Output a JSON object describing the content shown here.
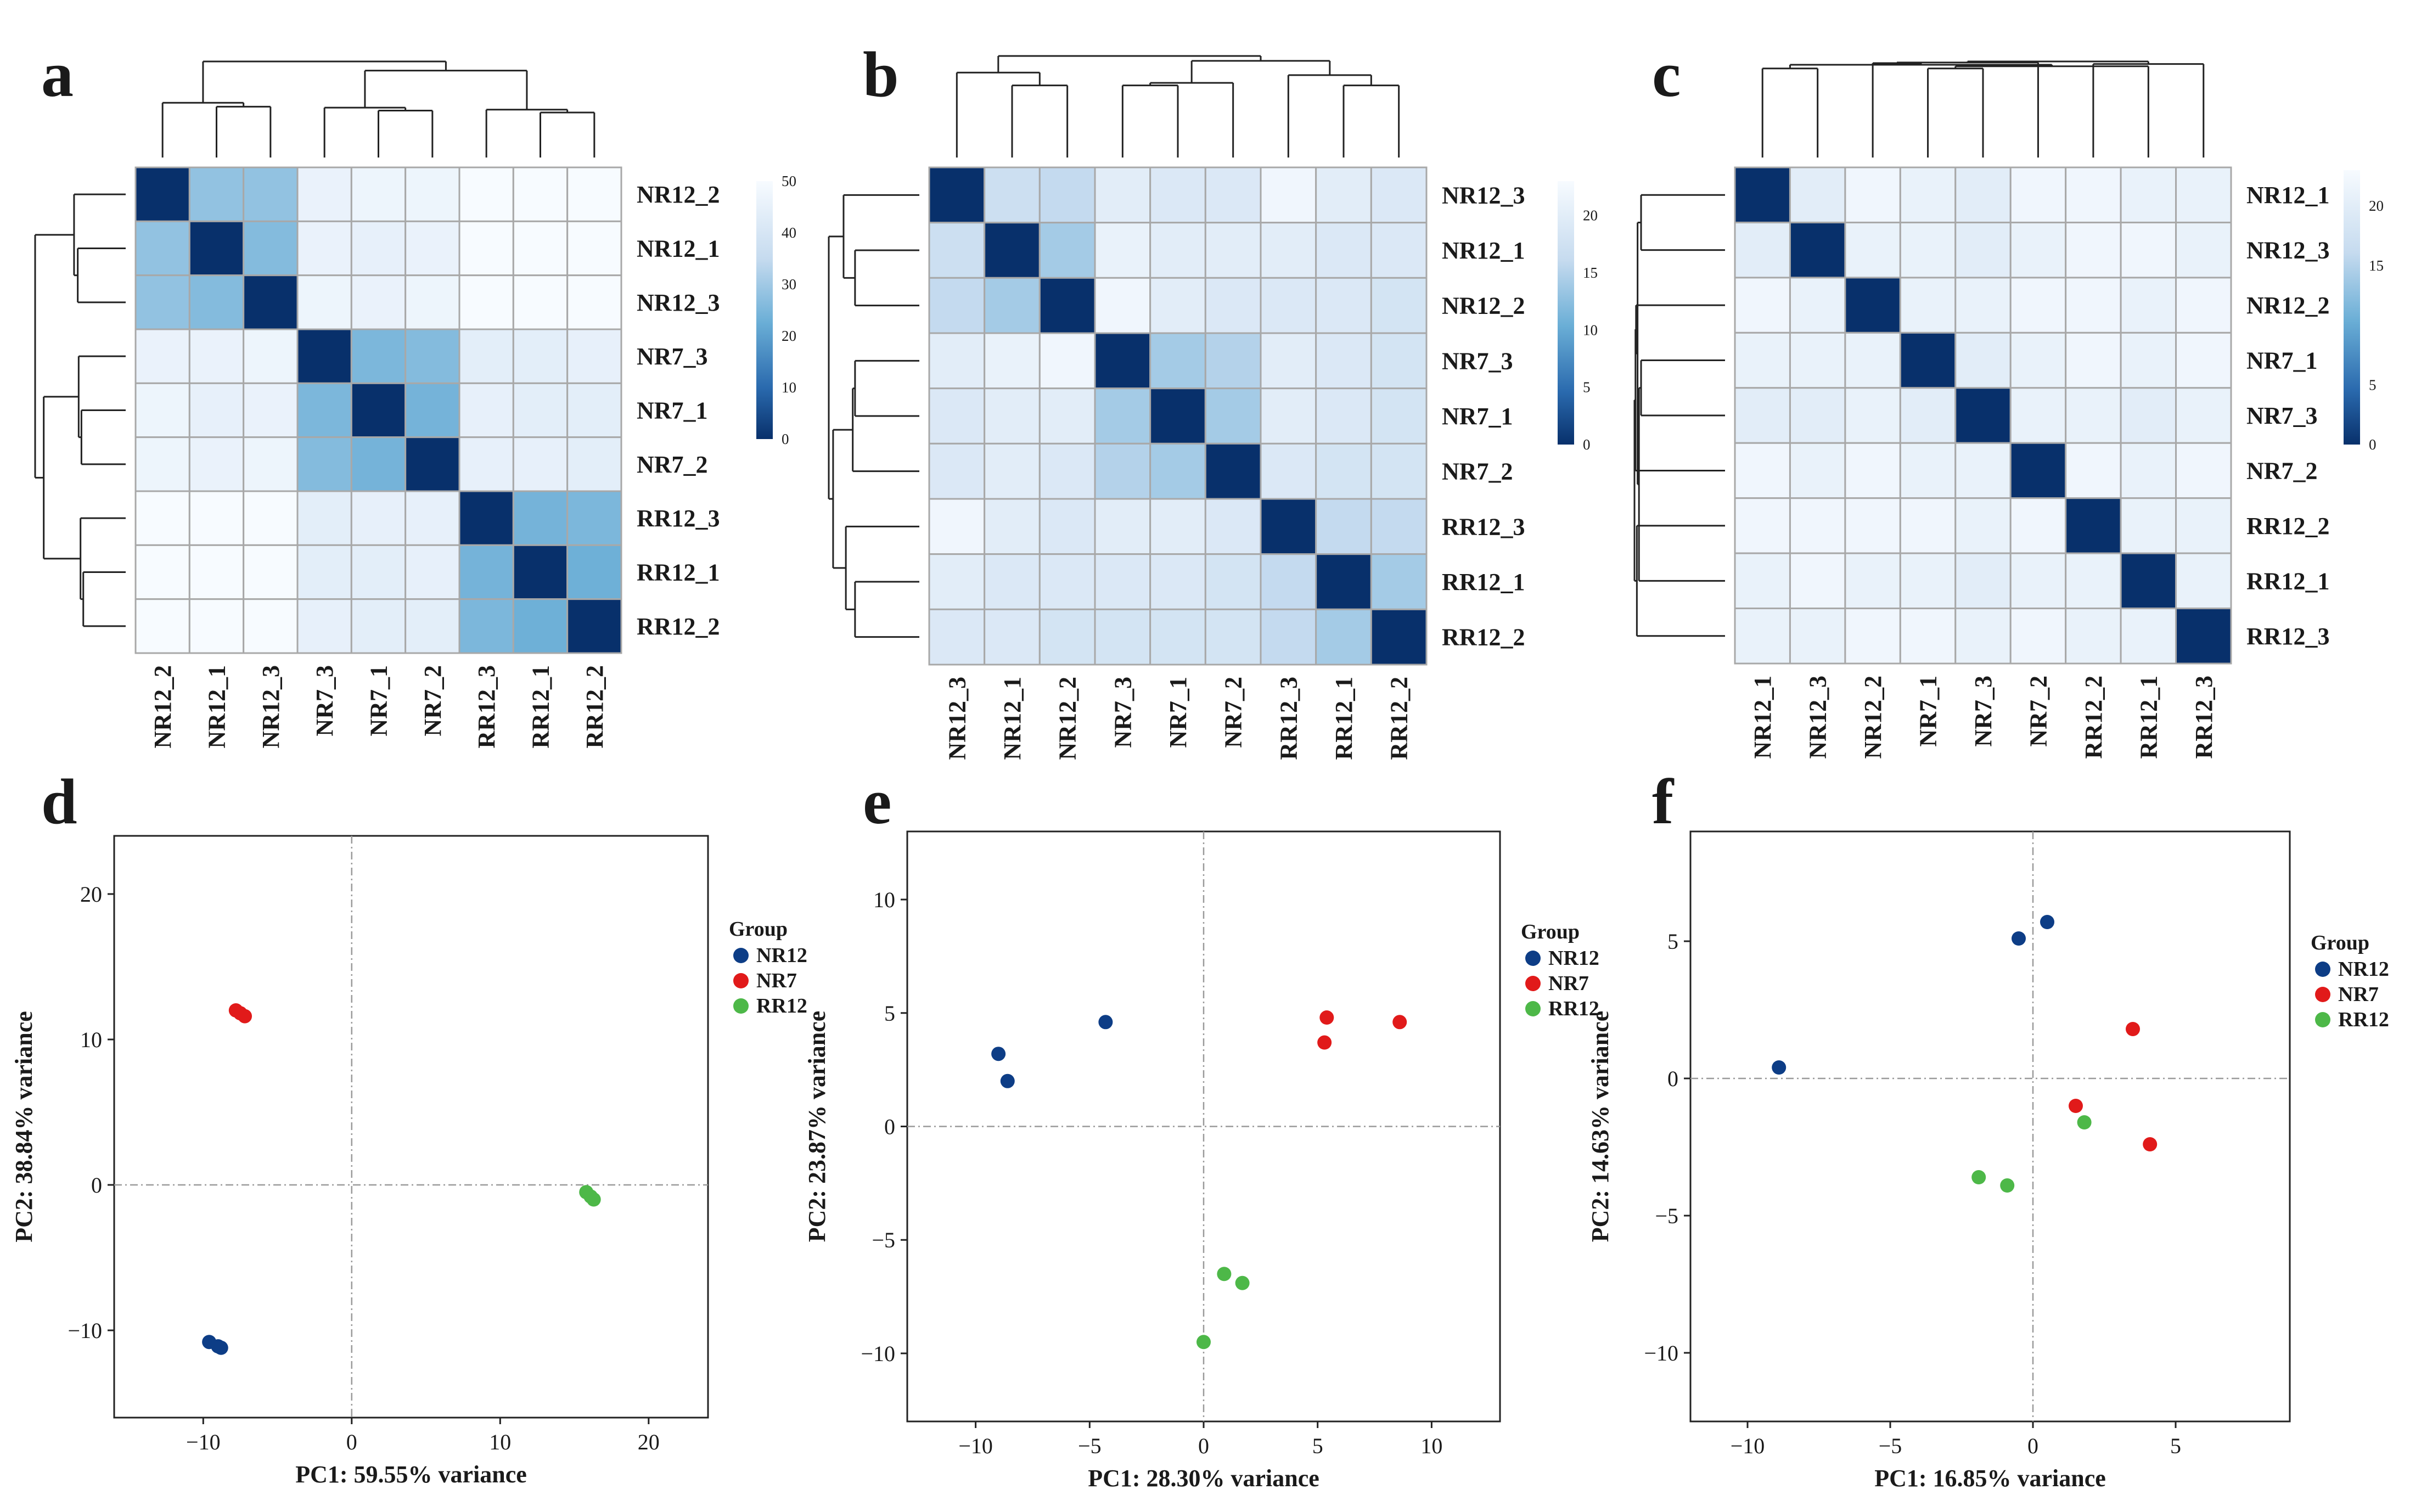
{
  "figure": {
    "panel_labels": [
      "a",
      "b",
      "c",
      "d",
      "e",
      "f"
    ]
  },
  "colors": {
    "NR12": "#0d3d86",
    "NR7": "#e11a1a",
    "RR12": "#4db848",
    "heat_low": "#08306b",
    "heat_mid": "#4a90c4",
    "heat_high": "#f7fbff",
    "grid": "#a8a8a8"
  },
  "chart_data": [
    {
      "panel": "a",
      "type": "heatmap",
      "row_labels": [
        "NR12_2",
        "NR12_1",
        "NR12_3",
        "NR7_3",
        "NR7_1",
        "NR7_2",
        "RR12_3",
        "RR12_1",
        "RR12_2"
      ],
      "col_labels": [
        "NR12_2",
        "NR12_1",
        "NR12_3",
        "NR7_3",
        "NR7_1",
        "NR7_2",
        "RR12_3",
        "RR12_1",
        "RR12_2"
      ],
      "matrix": [
        [
          0,
          28,
          28,
          46,
          47,
          47,
          52,
          53,
          53
        ],
        [
          28,
          0,
          26,
          46,
          45,
          46,
          51,
          52,
          52
        ],
        [
          28,
          26,
          0,
          47,
          46,
          47,
          52,
          51,
          51
        ],
        [
          46,
          46,
          47,
          0,
          25,
          26,
          44,
          44,
          45
        ],
        [
          47,
          45,
          46,
          25,
          0,
          24,
          45,
          44,
          44
        ],
        [
          47,
          46,
          47,
          26,
          24,
          0,
          45,
          45,
          44
        ],
        [
          52,
          51,
          52,
          44,
          45,
          45,
          0,
          24,
          25
        ],
        [
          53,
          52,
          51,
          44,
          44,
          45,
          24,
          0,
          23
        ],
        [
          53,
          52,
          51,
          45,
          44,
          44,
          25,
          23,
          0
        ]
      ],
      "colorbar": {
        "min": 0,
        "max": 50,
        "ticks": [
          0,
          10,
          20,
          30,
          40,
          50
        ]
      }
    },
    {
      "panel": "b",
      "type": "heatmap",
      "row_labels": [
        "NR12_3",
        "NR12_1",
        "NR12_2",
        "NR7_3",
        "NR7_1",
        "NR7_2",
        "RR12_3",
        "RR12_1",
        "RR12_2"
      ],
      "col_labels": [
        "NR12_3",
        "NR12_1",
        "NR12_2",
        "NR7_3",
        "NR7_1",
        "NR7_2",
        "RR12_3",
        "RR12_1",
        "RR12_2"
      ],
      "matrix": [
        [
          0,
          17,
          16,
          20,
          19,
          19,
          22,
          20,
          19
        ],
        [
          17,
          0,
          14,
          21,
          20,
          20,
          20,
          19,
          19
        ],
        [
          16,
          14,
          0,
          22,
          20,
          19,
          19,
          19,
          18
        ],
        [
          20,
          21,
          22,
          0,
          14,
          15,
          20,
          19,
          18
        ],
        [
          19,
          20,
          20,
          14,
          0,
          14,
          20,
          19,
          18
        ],
        [
          19,
          20,
          19,
          15,
          14,
          0,
          19,
          18,
          18
        ],
        [
          22,
          20,
          19,
          20,
          20,
          19,
          0,
          16,
          16
        ],
        [
          20,
          19,
          19,
          19,
          19,
          18,
          16,
          0,
          14
        ],
        [
          19,
          19,
          18,
          18,
          18,
          18,
          16,
          14,
          0
        ]
      ],
      "colorbar": {
        "min": 0,
        "max": 23,
        "ticks": [
          0,
          5,
          10,
          15,
          20
        ]
      }
    },
    {
      "panel": "c",
      "type": "heatmap",
      "row_labels": [
        "NR12_1",
        "NR12_3",
        "NR12_2",
        "NR7_1",
        "NR7_3",
        "NR7_2",
        "RR12_2",
        "RR12_1",
        "RR12_3"
      ],
      "col_labels": [
        "NR12_1",
        "NR12_3",
        "NR12_2",
        "NR7_1",
        "NR7_3",
        "NR7_2",
        "RR12_2",
        "RR12_1",
        "RR12_3"
      ],
      "matrix": [
        [
          0,
          20,
          22,
          21,
          20,
          22,
          22,
          21,
          21
        ],
        [
          20,
          0,
          21,
          21,
          20,
          21,
          22,
          22,
          21
        ],
        [
          22,
          21,
          0,
          21,
          21,
          22,
          22,
          21,
          22
        ],
        [
          21,
          21,
          21,
          0,
          20,
          21,
          22,
          21,
          22
        ],
        [
          20,
          20,
          21,
          20,
          0,
          21,
          21,
          20,
          21
        ],
        [
          22,
          21,
          22,
          21,
          21,
          0,
          22,
          21,
          22
        ],
        [
          22,
          22,
          22,
          22,
          21,
          22,
          0,
          21,
          21
        ],
        [
          21,
          22,
          21,
          21,
          20,
          21,
          21,
          0,
          21
        ],
        [
          21,
          21,
          22,
          22,
          21,
          22,
          21,
          21,
          0
        ]
      ],
      "colorbar": {
        "min": 0,
        "max": 23,
        "ticks": [
          0,
          5,
          15,
          20
        ]
      }
    },
    {
      "panel": "d",
      "type": "scatter",
      "xlabel": "PC1: 59.55% variance",
      "ylabel": "PC2: 38.84%  variance",
      "xlim": [
        -16,
        24
      ],
      "ylim": [
        -16,
        24
      ],
      "xticks": [
        -10,
        0,
        10,
        20
      ],
      "yticks": [
        -10,
        0,
        10,
        20
      ],
      "xtick_labels": [
        "−10",
        "0",
        "10",
        "20"
      ],
      "ytick_labels": [
        "−10",
        "0",
        "10",
        "20"
      ],
      "legend_title": "Group",
      "series": [
        {
          "name": "NR12",
          "points": [
            [
              -9.6,
              -10.8
            ],
            [
              -9.0,
              -11.1
            ],
            [
              -8.8,
              -11.2
            ]
          ]
        },
        {
          "name": "NR7",
          "points": [
            [
              -7.8,
              12.0
            ],
            [
              -7.5,
              11.8
            ],
            [
              -7.2,
              11.6
            ]
          ]
        },
        {
          "name": "RR12",
          "points": [
            [
              15.8,
              -0.5
            ],
            [
              16.1,
              -0.8
            ],
            [
              16.3,
              -1.0
            ]
          ]
        }
      ]
    },
    {
      "panel": "e",
      "type": "scatter",
      "xlabel": "PC1: 28.30% variance",
      "ylabel": "PC2: 23.87%  variance",
      "xlim": [
        -13,
        13
      ],
      "ylim": [
        -13,
        13
      ],
      "xticks": [
        -10,
        -5,
        0,
        5,
        10
      ],
      "yticks": [
        -10,
        -5,
        0,
        5,
        10
      ],
      "xtick_labels": [
        "−10",
        "−5",
        "0",
        "5",
        "10"
      ],
      "ytick_labels": [
        "−10",
        "−5",
        "0",
        "5",
        "10"
      ],
      "legend_title": "Group",
      "series": [
        {
          "name": "NR12",
          "points": [
            [
              -9.0,
              3.2
            ],
            [
              -8.6,
              2.0
            ],
            [
              -4.3,
              4.6
            ]
          ]
        },
        {
          "name": "NR7",
          "points": [
            [
              5.4,
              4.8
            ],
            [
              5.3,
              3.7
            ],
            [
              8.6,
              4.6
            ]
          ]
        },
        {
          "name": "RR12",
          "points": [
            [
              0.0,
              -9.5
            ],
            [
              0.9,
              -6.5
            ],
            [
              1.7,
              -6.9
            ]
          ]
        }
      ]
    },
    {
      "panel": "f",
      "type": "scatter",
      "xlabel": "PC1: 16.85% variance",
      "ylabel": "PC2: 14.63%  variance",
      "xlim": [
        -12,
        9
      ],
      "ylim": [
        -12.5,
        9
      ],
      "xticks": [
        -10,
        -5,
        0,
        5
      ],
      "yticks": [
        -10,
        -5,
        0,
        5
      ],
      "xtick_labels": [
        "−10",
        "−5",
        "0",
        "5"
      ],
      "ytick_labels": [
        "−10",
        "−5",
        "0",
        "5"
      ],
      "legend_title": "Group",
      "series": [
        {
          "name": "NR12",
          "points": [
            [
              -8.9,
              0.4
            ],
            [
              -0.5,
              5.1
            ],
            [
              0.5,
              5.7
            ]
          ]
        },
        {
          "name": "NR7",
          "points": [
            [
              1.5,
              -1.0
            ],
            [
              3.5,
              1.8
            ],
            [
              4.1,
              -2.4
            ]
          ]
        },
        {
          "name": "RR12",
          "points": [
            [
              -1.9,
              -3.6
            ],
            [
              -0.9,
              -3.9
            ],
            [
              1.8,
              -1.6
            ]
          ]
        }
      ]
    }
  ]
}
